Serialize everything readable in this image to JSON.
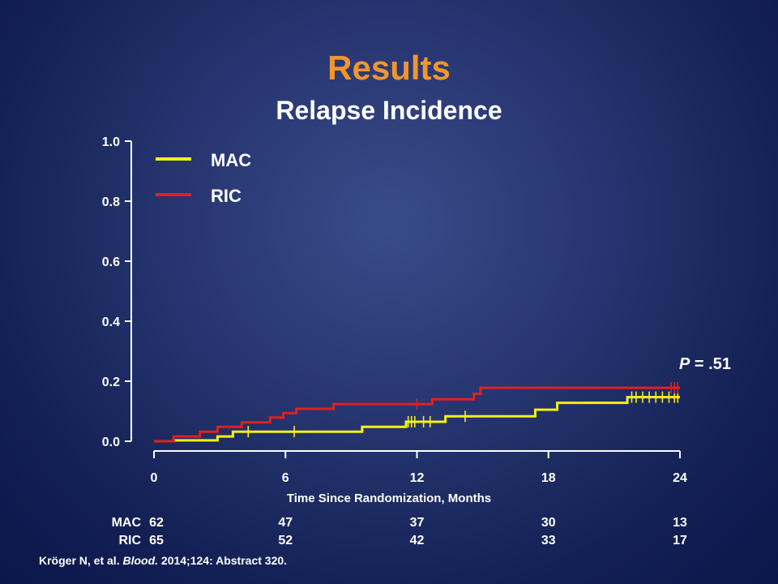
{
  "header": {
    "title": "Results",
    "subtitle": "Relapse Incidence"
  },
  "chart_data": {
    "type": "line",
    "xlabel": "Time Since Randomization, Months",
    "ylabel": "",
    "xlim": [
      0,
      24
    ],
    "ylim": [
      0,
      1.0
    ],
    "x_ticks": [
      "0",
      "6",
      "12",
      "18",
      "24"
    ],
    "y_ticks": [
      "0.0",
      "0.2",
      "0.4",
      "0.6",
      "0.8",
      "1.0"
    ],
    "legend_position": "top-left",
    "annotation": {
      "p_label": "P",
      "p_rest": " = .51"
    },
    "series": [
      {
        "name": "MAC",
        "color": "#f5f018",
        "step_points": [
          [
            0,
            0.0
          ],
          [
            0.9,
            0.0
          ],
          [
            0.9,
            0.003
          ],
          [
            2.9,
            0.003
          ],
          [
            2.9,
            0.016
          ],
          [
            3.6,
            0.016
          ],
          [
            3.6,
            0.032
          ],
          [
            9.5,
            0.032
          ],
          [
            9.5,
            0.048
          ],
          [
            11.5,
            0.048
          ],
          [
            11.5,
            0.065
          ],
          [
            13.3,
            0.065
          ],
          [
            13.3,
            0.083
          ],
          [
            17.4,
            0.083
          ],
          [
            17.4,
            0.105
          ],
          [
            18.4,
            0.105
          ],
          [
            18.4,
            0.128
          ],
          [
            21.6,
            0.128
          ],
          [
            21.6,
            0.147
          ],
          [
            24.0,
            0.147
          ]
        ],
        "censor_x": [
          4.3,
          6.4,
          11.6,
          11.75,
          11.9,
          12.3,
          12.6,
          14.2,
          21.8,
          22.0,
          22.3,
          22.6,
          22.9,
          23.2,
          23.5,
          23.75,
          23.9
        ]
      },
      {
        "name": "RIC",
        "color": "#e02020",
        "step_points": [
          [
            0,
            0.0
          ],
          [
            0.9,
            0.0
          ],
          [
            0.9,
            0.016
          ],
          [
            2.1,
            0.016
          ],
          [
            2.1,
            0.032
          ],
          [
            2.9,
            0.032
          ],
          [
            2.9,
            0.048
          ],
          [
            4.0,
            0.048
          ],
          [
            4.0,
            0.063
          ],
          [
            5.3,
            0.063
          ],
          [
            5.3,
            0.079
          ],
          [
            5.9,
            0.079
          ],
          [
            5.9,
            0.094
          ],
          [
            6.5,
            0.094
          ],
          [
            6.5,
            0.108
          ],
          [
            8.2,
            0.108
          ],
          [
            8.2,
            0.124
          ],
          [
            12.7,
            0.124
          ],
          [
            12.7,
            0.14
          ],
          [
            14.6,
            0.14
          ],
          [
            14.6,
            0.158
          ],
          [
            14.9,
            0.158
          ],
          [
            14.9,
            0.178
          ],
          [
            24.0,
            0.178
          ]
        ],
        "censor_x": [
          12.0,
          23.6,
          23.75,
          23.9
        ]
      }
    ],
    "at_risk": {
      "rows": [
        {
          "label": "MAC",
          "values": [
            "62",
            "47",
            "37",
            "30",
            "13"
          ]
        },
        {
          "label": "RIC",
          "values": [
            "65",
            "52",
            "42",
            "33",
            "17"
          ]
        }
      ]
    }
  },
  "reference": {
    "authors": "Kröger N, et al. ",
    "journal": "Blood.",
    "details": " 2014;124: Abstract 320."
  }
}
